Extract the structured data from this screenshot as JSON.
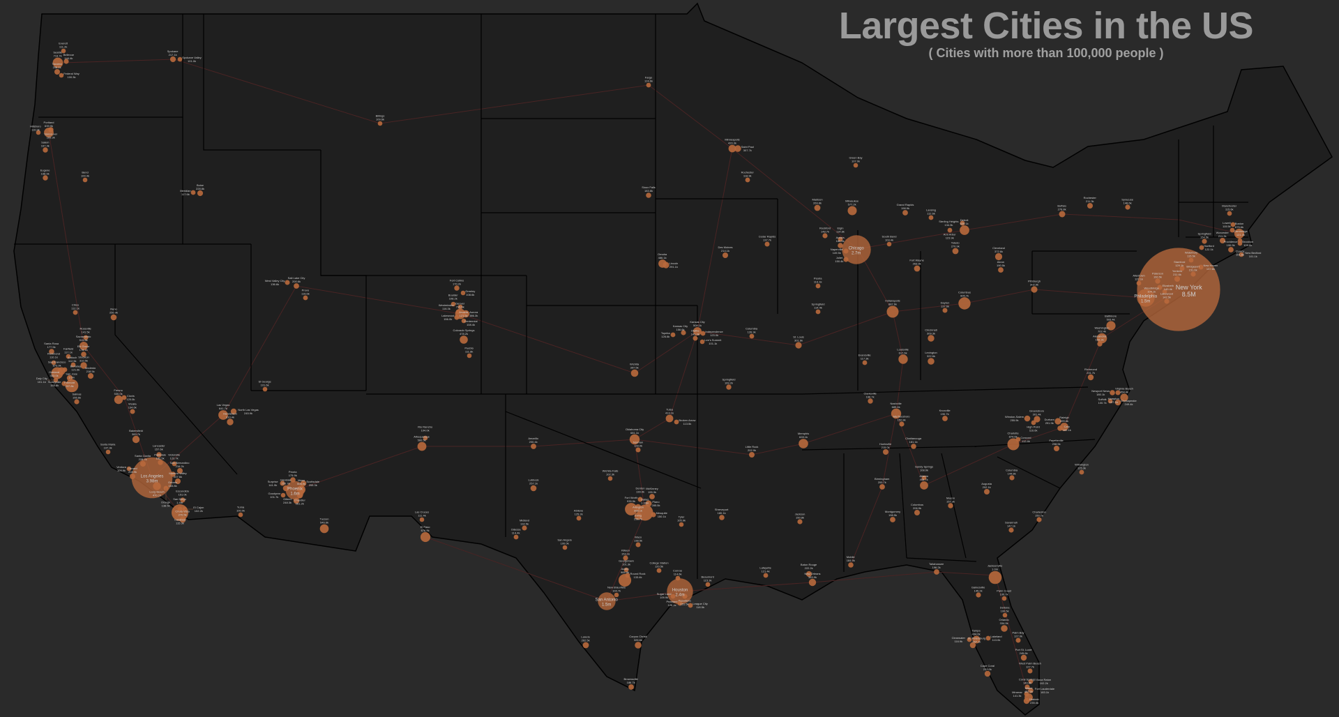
{
  "header": {
    "title": "Largest Cities in the US",
    "subtitle": "( Cities with more than 100,000 people )"
  },
  "colors": {
    "ocean": "#2a2a2a",
    "land": "#1f1f1f",
    "border": "#000000",
    "roads": "#4a2424",
    "city_circle": "#b8693c",
    "title": "#9a9a9a"
  },
  "cities": [
    {
      "name": "Seattle",
      "label": "713.7k"
    },
    {
      "name": "Everett",
      "label": "111.2k"
    },
    {
      "name": "Bellevue",
      "label": "144.4k"
    },
    {
      "name": "Tacoma",
      "label": "208.1k"
    },
    {
      "name": "Federal Way",
      "label": "100.3k"
    },
    {
      "name": "Vancouver",
      "label": "169.3k"
    },
    {
      "name": "Portland",
      "label": "639.9k"
    },
    {
      "name": "Hillsboro",
      "label": "110.3k"
    },
    {
      "name": "Salem",
      "label": "167.4k"
    },
    {
      "name": "Eugene",
      "label": "168.9k"
    },
    {
      "name": "Bend",
      "label": "100.4k"
    },
    {
      "name": "Spokane",
      "label": "217.1k"
    },
    {
      "name": "Spokane Valley",
      "label": "101.0k"
    },
    {
      "name": "Boise",
      "label": "228.8k"
    },
    {
      "name": "Meridian",
      "label": "117.6k"
    },
    {
      "name": "Billings",
      "label": "109.6k"
    },
    {
      "name": "Fargo",
      "label": "124.6k"
    },
    {
      "name": "Sioux Falls",
      "label": "183.8k"
    },
    {
      "name": "Minneapolis",
      "label": "420.3k"
    },
    {
      "name": "Saint Paul",
      "label": "307.7k"
    },
    {
      "name": "Rochester",
      "label": "118.9k"
    },
    {
      "name": "Sacramento",
      "label": "513.6k"
    },
    {
      "name": "Roseville",
      "label": "141.5k"
    },
    {
      "name": "Santa Rosa",
      "label": "177.5k"
    },
    {
      "name": "Fairfield",
      "label": "117.1k"
    },
    {
      "name": "Elk Grove",
      "label": "178.1k"
    },
    {
      "name": "Stockton",
      "label": "310.5k"
    },
    {
      "name": "Antioch",
      "label": "112.5k"
    },
    {
      "name": "Richmond",
      "label": "110.1k"
    },
    {
      "name": "San Francisco",
      "label": "873.9k"
    },
    {
      "name": "Berkeley",
      "label": "121.6k"
    },
    {
      "name": "Oakland",
      "label": "433.0k"
    },
    {
      "name": "Fremont",
      "label": "237.8k"
    },
    {
      "name": "Daly City",
      "label": "101.1k"
    },
    {
      "name": "Sunnyvale",
      "label": "155.8k"
    },
    {
      "name": "San Jose",
      "label": "1.0m"
    },
    {
      "name": "Modesto",
      "label": "218.5k"
    },
    {
      "name": "Salinas",
      "label": "155.6k"
    },
    {
      "name": "Fresno",
      "label": "530.0k"
    },
    {
      "name": "Clovis",
      "label": "120.0k"
    },
    {
      "name": "Reno",
      "label": "250.9k"
    },
    {
      "name": "Chico",
      "label": "112.1k"
    },
    {
      "name": "Visalia",
      "label": "134.6k"
    },
    {
      "name": "Bakersfield",
      "label": "383.7k"
    },
    {
      "name": "Santa Maria",
      "label": "107.3k"
    },
    {
      "name": "Lancaster",
      "label": "157.6k"
    },
    {
      "name": "Palmdale",
      "label": "162.5k"
    },
    {
      "name": "Santa Clarita",
      "label": "228.7k"
    },
    {
      "name": "Ventura",
      "label": "109.9k"
    },
    {
      "name": "Oxnard",
      "label": "208.9k"
    },
    {
      "name": "Los Angeles",
      "label": "3.98m"
    },
    {
      "name": "Long Beach",
      "label": "470.1k"
    },
    {
      "name": "Ontario",
      "label": "183.8k"
    },
    {
      "name": "San Bernardino",
      "label": "216.2k"
    },
    {
      "name": "Victorville",
      "label": "123.7k"
    },
    {
      "name": "Moreno Valley",
      "label": "207.6k"
    },
    {
      "name": "Orange",
      "label": "138.5k"
    },
    {
      "name": "Escondido",
      "label": "151.0k"
    },
    {
      "name": "Carlsbad",
      "label": "115.3k"
    },
    {
      "name": "San Diego",
      "label": "1.4m"
    },
    {
      "name": "El Cajon",
      "label": "102.2k"
    },
    {
      "name": "Chula Vista",
      "label": "270.5k"
    },
    {
      "name": "Las Vegas",
      "label": "641.7k"
    },
    {
      "name": "Henderson",
      "label": "310.4k"
    },
    {
      "name": "North Las Vegas",
      "label": "245.9k"
    },
    {
      "name": "St George",
      "label": "101.6k"
    },
    {
      "name": "Salt Lake City",
      "label": "200.6k"
    },
    {
      "name": "West Valley City",
      "label": "136.6k"
    },
    {
      "name": "Provo",
      "label": "116.6k"
    },
    {
      "name": "Phoenix",
      "label": "1.6m"
    },
    {
      "name": "Mesa",
      "label": "508.9k"
    },
    {
      "name": "Scottsdale",
      "label": "255.3k"
    },
    {
      "name": "Chandler",
      "label": "261.2k"
    },
    {
      "name": "Gilbert",
      "label": "248.3k"
    },
    {
      "name": "Glendale",
      "label": "250.7k"
    },
    {
      "name": "Peoria",
      "label": "175.9k"
    },
    {
      "name": "Surprise",
      "label": "141.9k"
    },
    {
      "name": "Goodyear",
      "label": "101.7k"
    },
    {
      "name": "Tucson",
      "label": "546.6k"
    },
    {
      "name": "Yuma",
      "label": "100.0k"
    },
    {
      "name": "Albuquerque",
      "label": "560.5k"
    },
    {
      "name": "Rio Rancho",
      "label": "104.0k"
    },
    {
      "name": "Las Cruces",
      "label": "111.4k"
    },
    {
      "name": "El Paso",
      "label": "678.8k"
    },
    {
      "name": "Denver",
      "label": "715.5k"
    },
    {
      "name": "Aurora",
      "label": "386.3k"
    },
    {
      "name": "Fort Collins",
      "label": "170.2k"
    },
    {
      "name": "Greeley",
      "label": "108.6k"
    },
    {
      "name": "Boulder",
      "label": "108.2k"
    },
    {
      "name": "Westminster",
      "label": "116.3k"
    },
    {
      "name": "Arvada",
      "label": "121.5k"
    },
    {
      "name": "Lakewood",
      "label": "156.0k"
    },
    {
      "name": "Centennial",
      "label": "108.4k"
    },
    {
      "name": "Colorado Springs",
      "label": "478.2k"
    },
    {
      "name": "Pueblo",
      "label": "111.8k"
    },
    {
      "name": "Wichita",
      "label": "397.5k"
    },
    {
      "name": "Topeka",
      "label": "126.6k"
    },
    {
      "name": "Kansas City",
      "label": "156.6k"
    },
    {
      "name": "Kansas City",
      "label": "508.1k"
    },
    {
      "name": "Independence",
      "label": "123.0k"
    },
    {
      "name": "Olathe",
      "label": "141.3k"
    },
    {
      "name": "Lee's Summit",
      "label": "101.1k"
    },
    {
      "name": "Columbia",
      "label": "126.3k"
    },
    {
      "name": "Springfield",
      "label": "169.2k"
    },
    {
      "name": "St. Louis",
      "label": "301.6k"
    },
    {
      "name": "Lincoln",
      "label": "291.1k"
    },
    {
      "name": "Omaha",
      "label": "486.1k"
    },
    {
      "name": "Des Moines",
      "label": "214.1k"
    },
    {
      "name": "Cedar Rapids",
      "label": "137.7k"
    },
    {
      "name": "Oklahoma City",
      "label": "681.1k"
    },
    {
      "name": "Norman",
      "label": "128.0k"
    },
    {
      "name": "Tulsa",
      "label": "413.1k"
    },
    {
      "name": "Broken Arrow",
      "label": "113.5k"
    },
    {
      "name": "Amarillo",
      "label": "200.4k"
    },
    {
      "name": "Lubbock",
      "label": "257.1k"
    },
    {
      "name": "Wichita Falls",
      "label": "102.3k"
    },
    {
      "name": "Midland",
      "label": "132.5k"
    },
    {
      "name": "Odessa",
      "label": "114.4k"
    },
    {
      "name": "Abilene",
      "label": "125.2k"
    },
    {
      "name": "San Angelo",
      "label": "100.0k"
    },
    {
      "name": "Dallas",
      "label": "1.33m"
    },
    {
      "name": "Fort Worth",
      "label": "935.5k"
    },
    {
      "name": "Arlington",
      "label": "398.1k"
    },
    {
      "name": "Irving",
      "label": "256.7k"
    },
    {
      "name": "Plano",
      "label": "285.5k"
    },
    {
      "name": "McKinney",
      "label": "195.3k"
    },
    {
      "name": "Denton",
      "label": "139.9k"
    },
    {
      "name": "Mesquite",
      "label": "150.1k"
    },
    {
      "name": "Tyler",
      "label": "105.9k"
    },
    {
      "name": "Waco",
      "label": "138.5k"
    },
    {
      "name": "Killeen",
      "label": "153.1k"
    },
    {
      "name": "Georgetown",
      "label": "101.3k"
    },
    {
      "name": "Round Rock",
      "label": "133.4k"
    },
    {
      "name": "Austin",
      "label": "965.9k"
    },
    {
      "name": "New Braunfels",
      "label": "104.7k"
    },
    {
      "name": "San Antonio",
      "label": "1.5m"
    },
    {
      "name": "College Station",
      "label": "120.5k"
    },
    {
      "name": "Conroe",
      "label": "114.6k"
    },
    {
      "name": "Houston",
      "label": "2.4m"
    },
    {
      "name": "Sugar Land",
      "label": "109.9k"
    },
    {
      "name": "Pasadena",
      "label": "151.5k"
    },
    {
      "name": "Pearland",
      "label": "126.2k"
    },
    {
      "name": "League City",
      "label": "118.5k"
    },
    {
      "name": "Beaumont",
      "label": "115.3k"
    },
    {
      "name": "Corpus Christi",
      "label": "326.6k"
    },
    {
      "name": "Laredo",
      "label": "262.5k"
    },
    {
      "name": "Brownsville",
      "label": "186.7k"
    },
    {
      "name": "Shreveport",
      "label": "180.1k"
    },
    {
      "name": "Little Rock",
      "label": "202.9k"
    },
    {
      "name": "Memphis",
      "label": "628.1k"
    },
    {
      "name": "Jackson",
      "label": "150.8k"
    },
    {
      "name": "Baton Rouge",
      "label": "222.2k"
    },
    {
      "name": "New Orleans",
      "label": "383.9k"
    },
    {
      "name": "Lafayette",
      "label": "121.4k"
    },
    {
      "name": "Mobile",
      "label": "184.9k"
    },
    {
      "name": "Birmingham",
      "label": "200.7k"
    },
    {
      "name": "Huntsville",
      "label": "215.0k"
    },
    {
      "name": "Montgomery",
      "label": "198.5k"
    },
    {
      "name": "Nashville",
      "label": "689.4k"
    },
    {
      "name": "Clarksville",
      "label": "166.7k"
    },
    {
      "name": "Murfreesboro",
      "label": "152.8k"
    },
    {
      "name": "Chattanooga",
      "label": "181.1k"
    },
    {
      "name": "Knoxville",
      "label": "190.7k"
    },
    {
      "name": "Atlanta",
      "label": "498.7k"
    },
    {
      "name": "Sandy Springs",
      "label": "108.0k"
    },
    {
      "name": "Columbus",
      "label": "206.9k"
    },
    {
      "name": "Macon",
      "label": "157.3k"
    },
    {
      "name": "Augusta",
      "label": "202.1k"
    },
    {
      "name": "Savannah",
      "label": "147.1k"
    },
    {
      "name": "Tallahassee",
      "label": "196.2k"
    },
    {
      "name": "Jacksonville",
      "label": "1.0m"
    },
    {
      "name": "Gainesville",
      "label": "145.2k"
    },
    {
      "name": "Palm Coast",
      "label": "100.7k"
    },
    {
      "name": "Deltona",
      "label": "100.5k"
    },
    {
      "name": "Orlando",
      "label": "334.9k"
    },
    {
      "name": "Lakeland",
      "label": "113.0k"
    },
    {
      "name": "Tampa",
      "label": "434.6k"
    },
    {
      "name": "Clearwater",
      "label": "116.9k"
    },
    {
      "name": "St. Petersburg",
      "label": "257.1k"
    },
    {
      "name": "Palm Bay",
      "label": "127.0k"
    },
    {
      "name": "Port St. Lucie",
      "label": "245.6k"
    },
    {
      "name": "Cape Coral",
      "label": "233.0k"
    },
    {
      "name": "West Palm Beach",
      "label": "127.7k"
    },
    {
      "name": "Boca Raton",
      "label": "102.2k"
    },
    {
      "name": "Coral Springs",
      "label": "140.8k"
    },
    {
      "name": "Fort Lauderdale",
      "label": "183.1k"
    },
    {
      "name": "Miramar",
      "label": "141.3k"
    },
    {
      "name": "Hialeah",
      "label": "235.4k"
    },
    {
      "name": "Miami",
      "label": "487.0k"
    },
    {
      "name": "Charlotte",
      "label": "874.6k"
    },
    {
      "name": "Concord",
      "label": "112.4k"
    },
    {
      "name": "Winston-Salem",
      "label": "255.9k"
    },
    {
      "name": "Greensboro",
      "label": "301.4k"
    },
    {
      "name": "High Point",
      "label": "116.6k"
    },
    {
      "name": "Durham",
      "label": "291.9k"
    },
    {
      "name": "Raleigh",
      "label": "499.8k"
    },
    {
      "name": "Cary",
      "label": "182.1k"
    },
    {
      "name": "Fayetteville",
      "label": "208.5k"
    },
    {
      "name": "Columbia",
      "label": "144.8k"
    },
    {
      "name": "Wilmington",
      "label": "125.3k"
    },
    {
      "name": "Charleston",
      "label": "150.2k"
    },
    {
      "name": "Richmond",
      "label": "231.7k"
    },
    {
      "name": "Newport News",
      "label": "180.1k"
    },
    {
      "name": "Hampton",
      "label": "137.1k"
    },
    {
      "name": "Virginia Beach",
      "label": "454.4k"
    },
    {
      "name": "Chesapeake",
      "label": "249.4k"
    },
    {
      "name": "Suffolk",
      "label": "100.7k"
    },
    {
      "name": "Washington",
      "label": "702.4k"
    },
    {
      "name": "Alexandria",
      "label": "159.2k"
    },
    {
      "name": "Baltimore",
      "label": "593.4k"
    },
    {
      "name": "Philadelphia",
      "label": "1.5m"
    },
    {
      "name": "Allentown",
      "label": "122.1k"
    },
    {
      "name": "Paterson",
      "label": "160.5k"
    },
    {
      "name": "Elizabeth",
      "label": "140.4k"
    },
    {
      "name": "Woodbridge",
      "label": "104.1k"
    },
    {
      "name": "Lakewood",
      "label": "142.5k"
    },
    {
      "name": "New York",
      "label": "8.5M"
    },
    {
      "name": "Yonkers",
      "label": "211.6k"
    },
    {
      "name": "Stamford",
      "label": "129.1k"
    },
    {
      "name": "Bridgeport",
      "label": "151.6k"
    },
    {
      "name": "New Haven",
      "label": "137.6k"
    },
    {
      "name": "Waterbury",
      "label": "115.5k"
    },
    {
      "name": "Hartford",
      "label": "122.1k"
    },
    {
      "name": "Springfield",
      "label": "154.5k"
    },
    {
      "name": "Worcester",
      "label": "211.2k"
    },
    {
      "name": "Providence",
      "label": "190.9k"
    },
    {
      "name": "Boston",
      "label": "675.6k"
    },
    {
      "name": "Cambridge",
      "label": "121.3k"
    },
    {
      "name": "Lowell",
      "label": "115.5k"
    },
    {
      "name": "Manchester",
      "label": "115.6k"
    },
    {
      "name": "Quincy",
      "label": "101.6k"
    },
    {
      "name": "Brockton",
      "label": "105.6k"
    },
    {
      "name": "New Bedford",
      "label": "101.1k"
    },
    {
      "name": "Buffalo",
      "label": "276.8k"
    },
    {
      "name": "Rochester",
      "label": "211.3k"
    },
    {
      "name": "Syracuse",
      "label": "148.6k"
    },
    {
      "name": "Pittsburgh",
      "label": "302.9k"
    },
    {
      "name": "Cleveland",
      "label": "372.6k"
    },
    {
      "name": "Akron",
      "label": "190.5k"
    },
    {
      "name": "Columbus",
      "label": "905.7k"
    },
    {
      "name": "Cincinnati",
      "label": "309.3k"
    },
    {
      "name": "Dayton",
      "label": "137.6k"
    },
    {
      "name": "Toledo",
      "label": "270.9k"
    },
    {
      "name": "Detroit",
      "label": "639.1k"
    },
    {
      "name": "Sterling Heights",
      "label": "134.3k"
    },
    {
      "name": "Ann Arbor",
      "label": "123.9k"
    },
    {
      "name": "Lansing",
      "label": "112.6k"
    },
    {
      "name": "Grand Rapids",
      "label": "198.9k"
    },
    {
      "name": "Indianapolis",
      "label": "887.6k"
    },
    {
      "name": "Fort Wayne",
      "label": "263.9k"
    },
    {
      "name": "South Bend",
      "label": "103.4k"
    },
    {
      "name": "Evansville",
      "label": "117.3k"
    },
    {
      "name": "Louisville",
      "label": "617.6k"
    },
    {
      "name": "Lexington",
      "label": "322.6k"
    },
    {
      "name": "Chicago",
      "label": "2.7m"
    },
    {
      "name": "Naperville",
      "label": "149.5k"
    },
    {
      "name": "Aurora",
      "label": "180.5k"
    },
    {
      "name": "Elgin",
      "label": "114.8k"
    },
    {
      "name": "Joliet",
      "label": "150.4k"
    },
    {
      "name": "Rockford",
      "label": "148.7k"
    },
    {
      "name": "Milwaukee",
      "label": "577.2k"
    },
    {
      "name": "Madison",
      "label": "269.8k"
    },
    {
      "name": "Green Bay",
      "label": "107.0k"
    },
    {
      "name": "Peoria",
      "label": "113.1k"
    },
    {
      "name": "Springfield",
      "label": "114.4k"
    }
  ]
}
